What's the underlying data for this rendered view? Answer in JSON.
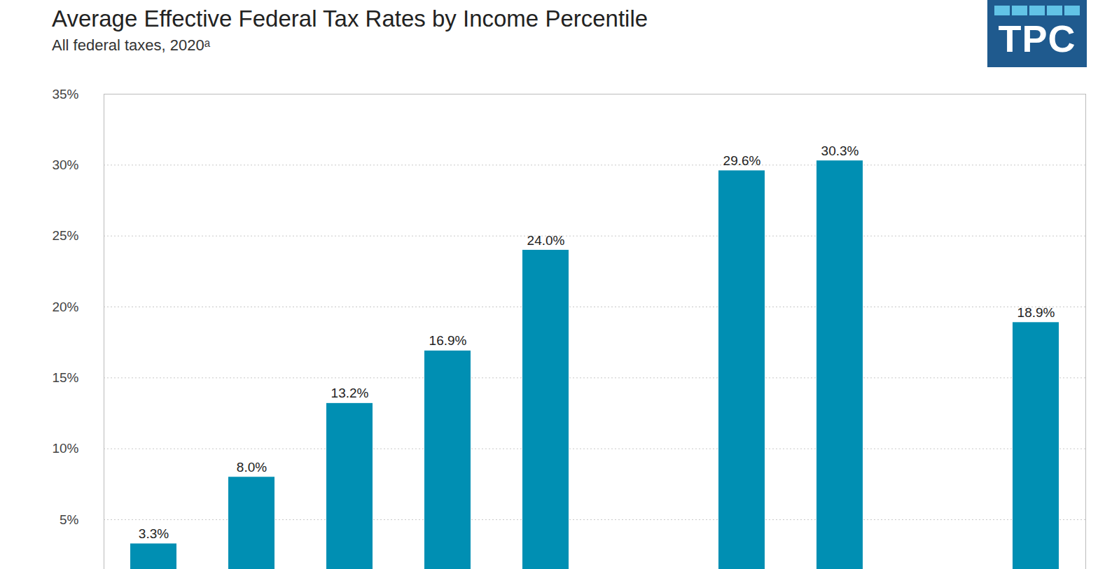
{
  "chart_data": {
    "type": "bar",
    "title": "Average Effective Federal Tax Rates by Income Percentile",
    "subtitle": "All federal taxes, 2020ᵃ",
    "annotations": [
      "TPC"
    ],
    "categories": [
      null,
      null,
      null,
      null,
      null,
      null,
      null,
      null,
      null,
      null
    ],
    "values": [
      3.3,
      8.0,
      13.2,
      16.9,
      24.0,
      null,
      29.6,
      30.3,
      null,
      18.9
    ],
    "value_labels": [
      "3.3%",
      "8.0%",
      "13.2%",
      "16.9%",
      "24.0%",
      null,
      "29.6%",
      "30.3%",
      null,
      "18.9%"
    ],
    "color": "#008fb3",
    "ylim": [
      1.5,
      35
    ],
    "yticks": [
      {
        "value": 5,
        "label": "5%"
      },
      {
        "value": 10,
        "label": "10%"
      },
      {
        "value": 15,
        "label": "15%"
      },
      {
        "value": 20,
        "label": "20%"
      },
      {
        "value": 25,
        "label": "25%"
      },
      {
        "value": 30,
        "label": "30%"
      },
      {
        "value": 35,
        "label": "35%"
      }
    ],
    "grid": true,
    "data_labels": true,
    "tick_labels": "y"
  }
}
